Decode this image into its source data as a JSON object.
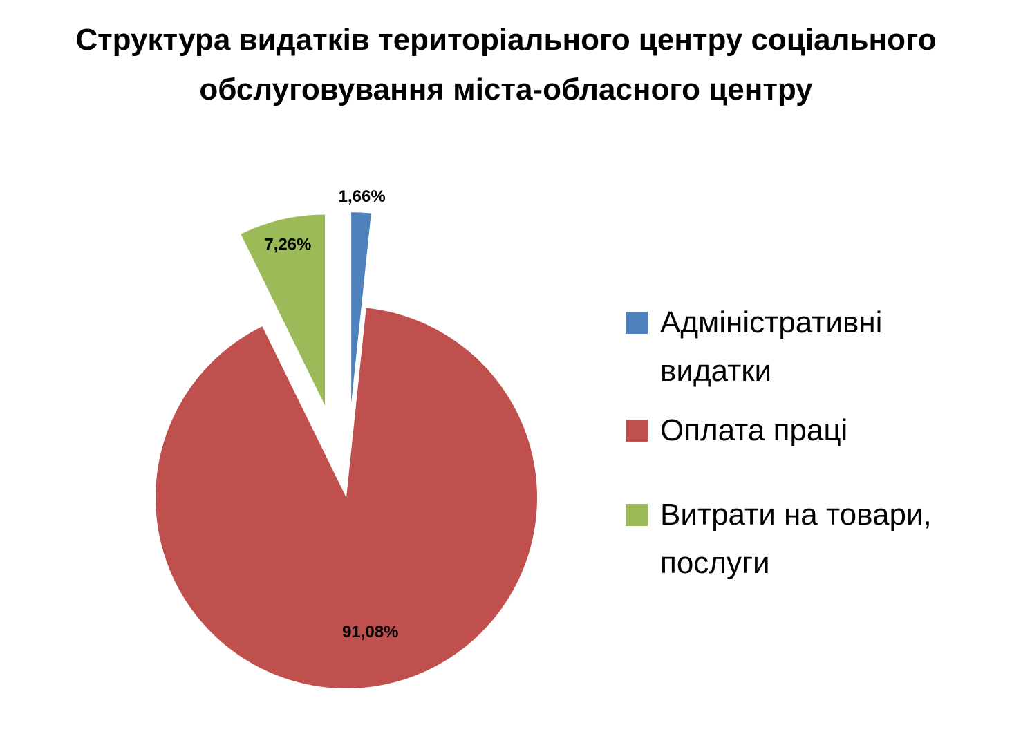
{
  "chart_data": {
    "type": "pie",
    "title": "Структура видатків територіального центру соціального обслуговування міста-обласного центру",
    "categories": [
      "Адміністративні видатки",
      "Оплата праці",
      "Витрати на товари, послуги"
    ],
    "values": [
      1.66,
      91.08,
      7.26
    ],
    "value_labels": [
      "1,66%",
      "91,08%",
      "7,26%"
    ],
    "colors": [
      "#4f81bd",
      "#c0504d",
      "#9bbb59"
    ],
    "legend": "right"
  }
}
